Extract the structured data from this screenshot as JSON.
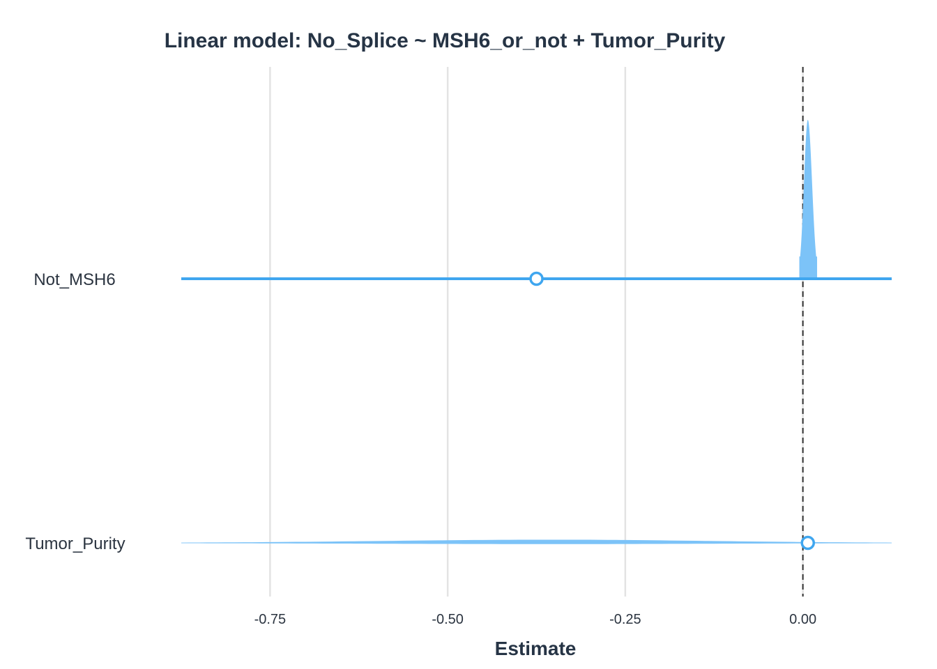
{
  "chart_data": {
    "type": "forest",
    "title": "Linear model: No_Splice ~ MSH6_or_not + Tumor_Purity",
    "xlabel": "Estimate",
    "ylabel": "",
    "xlim": [
      -0.875,
      0.125
    ],
    "xticks": [
      -0.75,
      -0.5,
      -0.25,
      0.0
    ],
    "xtick_labels": [
      "-0.75",
      "-0.50",
      "-0.25",
      "0.00"
    ],
    "reference_line": 0.0,
    "grid": true,
    "series": [
      {
        "name": "Not_MSH6",
        "estimate": -0.375,
        "ci": [
          -0.875,
          0.125
        ],
        "density_range": [
          -0.005,
          0.02
        ],
        "density_mode": 0.007,
        "density_peak": 1.0
      },
      {
        "name": "Tumor_Purity",
        "estimate": 0.007,
        "ci": [
          -0.875,
          0.125
        ],
        "density_range": [
          -0.875,
          0.125
        ],
        "density_mode": -0.35,
        "density_peak": 0.02
      }
    ],
    "colors": {
      "line": "#3fa6ef",
      "density": "#7cc3f8",
      "reference": "#333333",
      "grid": "#e3e3e3"
    }
  }
}
